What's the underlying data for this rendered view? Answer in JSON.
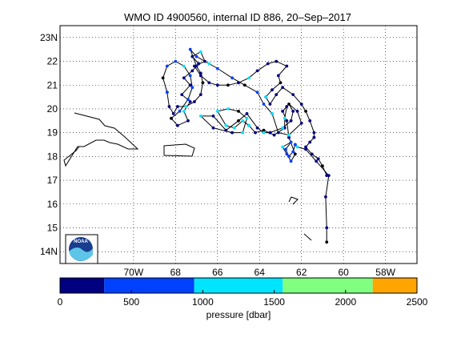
{
  "chart_data": {
    "type": "scatter",
    "title": "WMO ID 4900560, internal ID 886, 20–Sep–2017",
    "map": {
      "lon_range_west": [
        73.5,
        56.5
      ],
      "lat_range": [
        13.5,
        23.5
      ],
      "grid": true,
      "lon_ticks": [
        {
          "value": 70,
          "label": "70W"
        },
        {
          "value": 68,
          "label": "68"
        },
        {
          "value": 66,
          "label": "66"
        },
        {
          "value": 64,
          "label": "64"
        },
        {
          "value": 62,
          "label": "62"
        },
        {
          "value": 60,
          "label": "60"
        },
        {
          "value": 58,
          "label": "58W"
        }
      ],
      "lat_ticks": [
        {
          "value": 23,
          "label": "23N"
        },
        {
          "value": 22,
          "label": "22"
        },
        {
          "value": 21,
          "label": "21"
        },
        {
          "value": 20,
          "label": "20"
        },
        {
          "value": 19,
          "label": "19"
        },
        {
          "value": 18,
          "label": "18"
        },
        {
          "value": 17,
          "label": "17"
        },
        {
          "value": 16,
          "label": "16"
        },
        {
          "value": 15,
          "label": "15"
        },
        {
          "value": 14,
          "label": "14N"
        }
      ]
    },
    "colorbar": {
      "label": "pressure [dbar]",
      "range": [
        0,
        2500
      ],
      "tick_values": [
        0,
        500,
        1000,
        1500,
        2000,
        2500
      ],
      "tick_labels": [
        "0",
        "500",
        "1000",
        "1500",
        "2000",
        "2500"
      ],
      "bands": [
        {
          "from": 0,
          "to": 310,
          "color": "#000080"
        },
        {
          "from": 310,
          "to": 940,
          "color": "#0040ff"
        },
        {
          "from": 940,
          "to": 1560,
          "color": "#00e5ff"
        },
        {
          "from": 1560,
          "to": 2190,
          "color": "#80ff80"
        },
        {
          "from": 2190,
          "to": 2500,
          "color": "#ffa500"
        }
      ]
    },
    "segments": [
      [
        [
          60.8,
          14.4
        ],
        [
          60.8,
          15.0
        ],
        [
          60.85,
          16.3
        ],
        [
          60.7,
          17.2
        ],
        [
          61.3,
          17.8
        ],
        [
          61.8,
          18.3
        ],
        [
          62.2,
          18.4
        ],
        [
          62.3,
          18.5
        ]
      ],
      [
        [
          62.3,
          18.5
        ],
        [
          62.4,
          18.2
        ],
        [
          62.6,
          18.0
        ],
        [
          62.75,
          18.3
        ],
        [
          62.5,
          18.6
        ],
        [
          62.9,
          18.4
        ],
        [
          62.7,
          18.1
        ],
        [
          62.5,
          17.8
        ],
        [
          62.3,
          18.1
        ],
        [
          62.6,
          18.8
        ]
      ],
      [
        [
          62.6,
          18.8
        ],
        [
          62.7,
          19.5
        ],
        [
          62.9,
          19.9
        ],
        [
          62.7,
          20.1
        ],
        [
          62.8,
          19.6
        ],
        [
          62.8,
          19.2
        ],
        [
          63.3,
          18.9
        ],
        [
          63.8,
          19.1
        ],
        [
          64.2,
          19.0
        ],
        [
          64.5,
          19.3
        ]
      ],
      [
        [
          64.5,
          19.3
        ],
        [
          64.8,
          19.5
        ],
        [
          65.2,
          19.2
        ],
        [
          65.6,
          19.3
        ],
        [
          66.0,
          19.9
        ],
        [
          65.5,
          20.0
        ],
        [
          65.0,
          19.9
        ],
        [
          64.6,
          19.6
        ],
        [
          64.8,
          19.0
        ],
        [
          65.3,
          19.0
        ]
      ],
      [
        [
          65.3,
          19.0
        ],
        [
          66.2,
          19.2
        ],
        [
          66.8,
          19.7
        ],
        [
          66.2,
          19.7
        ],
        [
          65.6,
          19.1
        ],
        [
          65.0,
          19.5
        ],
        [
          64.6,
          19.8
        ],
        [
          64.1,
          19.2
        ],
        [
          63.8,
          19.0
        ],
        [
          63.5,
          19.0
        ]
      ],
      [
        [
          63.5,
          19.0
        ],
        [
          62.9,
          19.2
        ],
        [
          62.5,
          19.5
        ],
        [
          62.4,
          19.9
        ],
        [
          62.6,
          20.2
        ],
        [
          62.2,
          19.9
        ],
        [
          62.0,
          19.4
        ],
        [
          62.6,
          18.9
        ],
        [
          63.1,
          19.0
        ],
        [
          63.4,
          19.8
        ]
      ],
      [
        [
          63.4,
          19.8
        ],
        [
          63.8,
          20.2
        ],
        [
          64.1,
          20.7
        ],
        [
          64.7,
          21.0
        ],
        [
          65.3,
          21.3
        ],
        [
          66.0,
          21.7
        ],
        [
          66.4,
          21.9
        ],
        [
          67.0,
          22.2
        ],
        [
          67.3,
          22.5
        ],
        [
          67.0,
          21.8
        ]
      ],
      [
        [
          67.0,
          21.8
        ],
        [
          66.8,
          21.5
        ],
        [
          66.7,
          21.1
        ],
        [
          66.8,
          20.6
        ],
        [
          67.1,
          20.3
        ],
        [
          67.5,
          20.1
        ],
        [
          67.9,
          20.1
        ],
        [
          68.1,
          19.8
        ],
        [
          68.3,
          20.1
        ],
        [
          68.4,
          20.7
        ]
      ],
      [
        [
          68.4,
          20.7
        ],
        [
          68.6,
          21.3
        ],
        [
          68.4,
          21.8
        ],
        [
          68.0,
          22.0
        ],
        [
          67.6,
          21.8
        ],
        [
          67.3,
          21.4
        ],
        [
          67.2,
          20.9
        ],
        [
          67.4,
          20.4
        ],
        [
          67.8,
          19.9
        ],
        [
          68.2,
          19.6
        ]
      ],
      [
        [
          68.2,
          19.6
        ],
        [
          67.9,
          19.3
        ],
        [
          67.4,
          19.5
        ],
        [
          67.6,
          19.9
        ],
        [
          67.3,
          20.3
        ],
        [
          67.7,
          20.6
        ],
        [
          67.3,
          21.0
        ],
        [
          67.6,
          21.3
        ],
        [
          67.2,
          21.6
        ],
        [
          66.9,
          21.9
        ]
      ],
      [
        [
          66.9,
          21.9
        ],
        [
          67.2,
          22.2
        ],
        [
          66.8,
          22.4
        ],
        [
          66.6,
          22.0
        ],
        [
          67.1,
          21.8
        ],
        [
          66.8,
          21.4
        ],
        [
          66.4,
          21.1
        ],
        [
          66.0,
          21.0
        ],
        [
          65.5,
          21.0
        ],
        [
          65.0,
          21.1
        ]
      ],
      [
        [
          65.0,
          21.1
        ],
        [
          64.5,
          21.3
        ],
        [
          64.1,
          21.6
        ],
        [
          63.6,
          21.9
        ],
        [
          63.2,
          22.0
        ],
        [
          62.7,
          21.8
        ],
        [
          63.1,
          21.4
        ],
        [
          63.0,
          21.1
        ],
        [
          63.4,
          20.8
        ],
        [
          63.7,
          20.5
        ]
      ],
      [
        [
          63.7,
          20.5
        ],
        [
          63.5,
          20.2
        ],
        [
          63.2,
          20.6
        ],
        [
          62.9,
          20.9
        ],
        [
          62.4,
          20.6
        ],
        [
          62.0,
          20.2
        ],
        [
          61.8,
          19.9
        ],
        [
          61.6,
          19.5
        ],
        [
          61.4,
          19.0
        ],
        [
          61.4,
          18.8
        ]
      ],
      [
        [
          61.4,
          18.8
        ],
        [
          61.6,
          18.6
        ],
        [
          61.8,
          18.4
        ],
        [
          61.5,
          18.1
        ],
        [
          61.2,
          17.9
        ],
        [
          61.0,
          17.6
        ],
        [
          60.8,
          17.2
        ]
      ]
    ]
  },
  "ui": {
    "logo_text": "NOAA"
  }
}
